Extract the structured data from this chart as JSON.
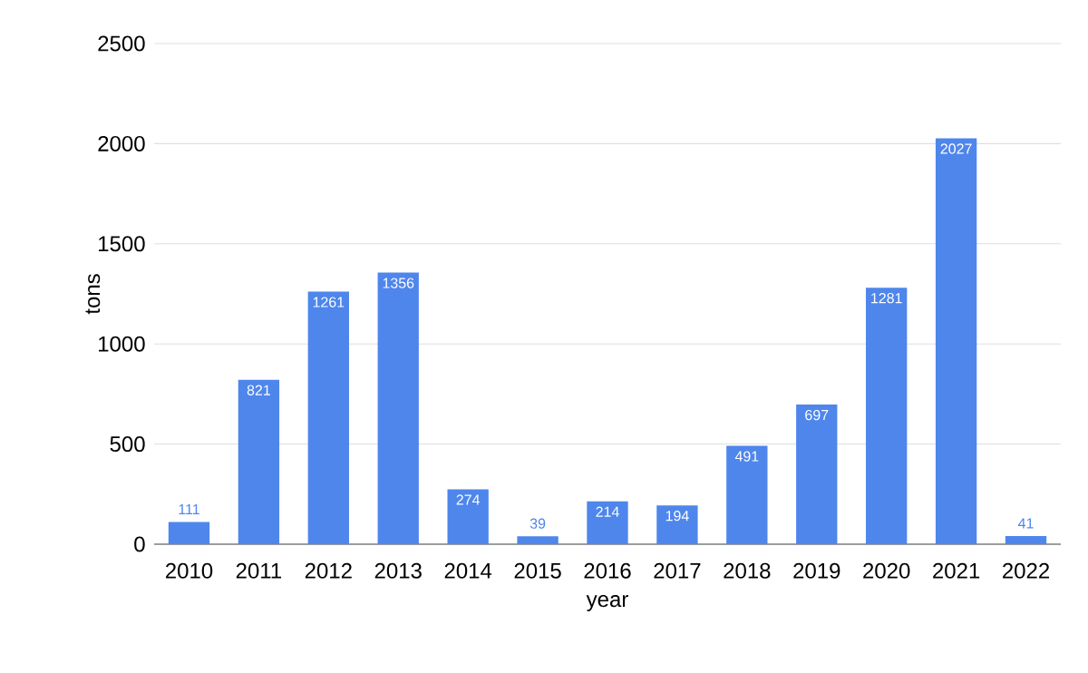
{
  "chart_data": {
    "type": "bar",
    "xlabel": "year",
    "ylabel": "tons",
    "categories": [
      "2010",
      "2011",
      "2012",
      "2013",
      "2014",
      "2015",
      "2016",
      "2017",
      "2018",
      "2019",
      "2020",
      "2021",
      "2022"
    ],
    "values": [
      111,
      821,
      1261,
      1356,
      274,
      39,
      214,
      194,
      491,
      697,
      1281,
      2027,
      41
    ],
    "color": "#4e86ec",
    "ylim": [
      0,
      2500
    ],
    "yticks": [
      0,
      500,
      1000,
      1500,
      2000,
      2500
    ],
    "grid": "y",
    "data_labels": true
  }
}
